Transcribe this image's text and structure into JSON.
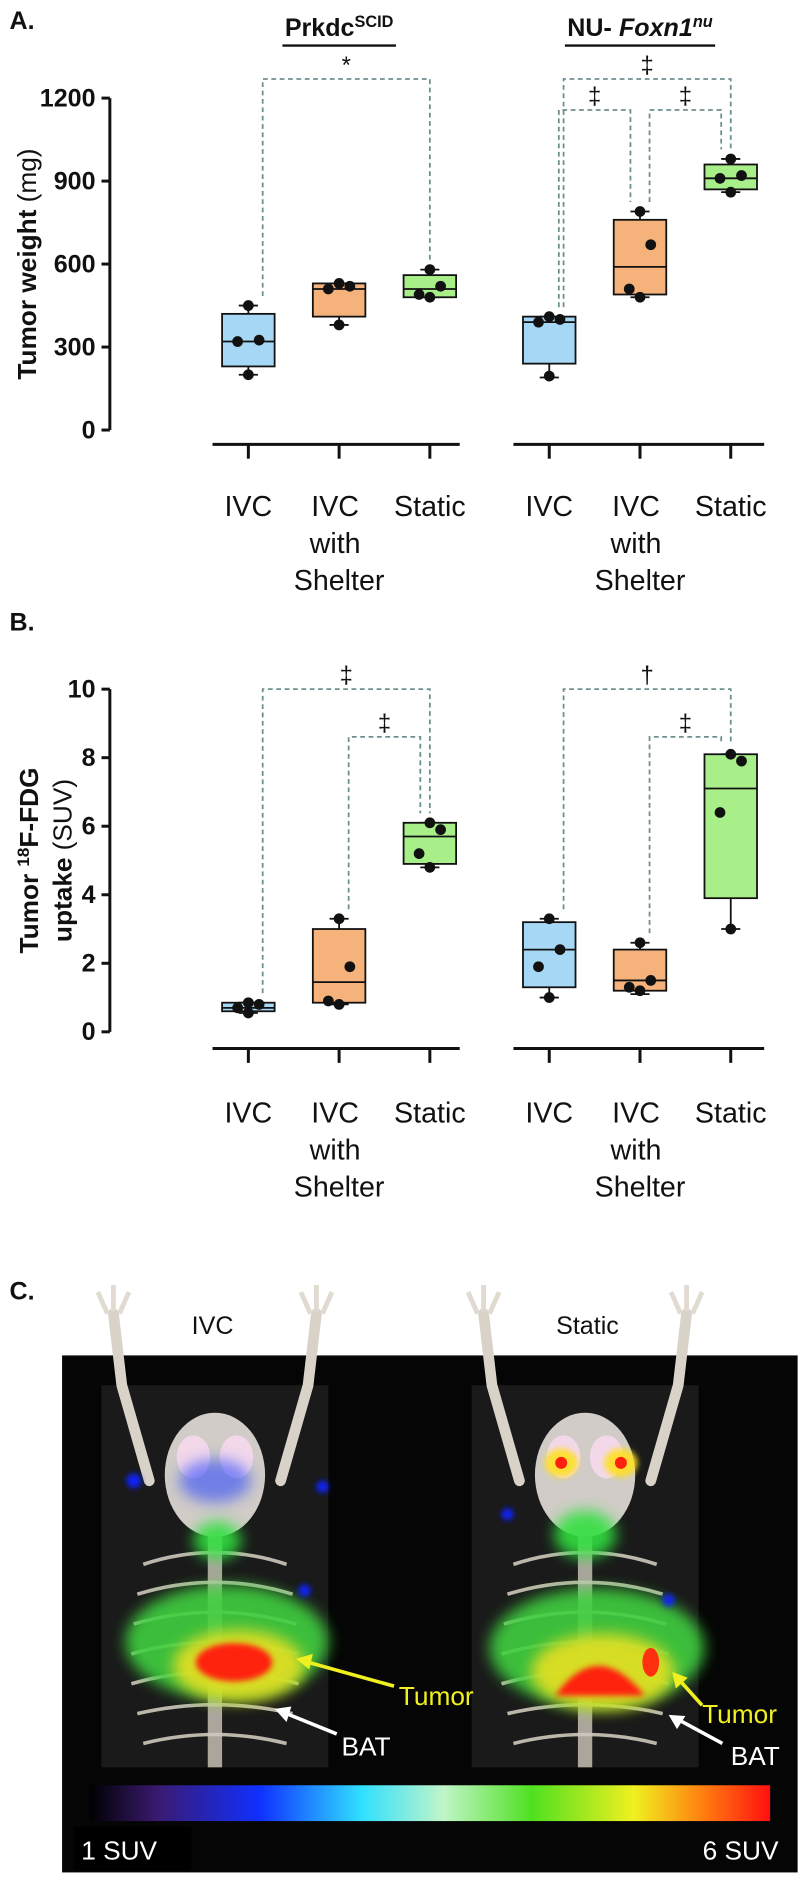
{
  "chart_data": [
    {
      "type": "box",
      "panel_label": "A.",
      "y_label": [
        [
          {
            "text": "Tumor weight",
            "bold": true
          },
          {
            "text": "(mg)"
          }
        ]
      ],
      "ylim": [
        0,
        1200
      ],
      "yticks": [
        0,
        300,
        600,
        900,
        1200
      ],
      "colors": [
        "#a6d8f5",
        "#f5b27a",
        "#a8ef8a"
      ],
      "groups": [
        {
          "title": [
            {
              "text": "Prkdc",
              "bold": true
            },
            {
              "text": "SCID",
              "bold": true,
              "sup": true
            }
          ],
          "categories": [
            "IVC",
            "IVC with Shelter",
            "Static"
          ],
          "boxes": [
            {
              "whisker": [
                200,
                450
              ],
              "box": [
                230,
                420
              ],
              "median": 320,
              "points": [
                450,
                325,
                320,
                200
              ]
            },
            {
              "whisker": [
                380,
                530
              ],
              "box": [
                410,
                530
              ],
              "median": 510,
              "points": [
                530,
                520,
                510,
                380
              ]
            },
            {
              "whisker": [
                480,
                580
              ],
              "box": [
                480,
                560
              ],
              "median": 510,
              "points": [
                580,
                520,
                490,
                480
              ]
            }
          ],
          "significance": [
            {
              "between": [
                0,
                2
              ],
              "label": "*"
            }
          ]
        },
        {
          "title": [
            {
              "text": "NU-",
              "bold": true
            },
            {
              "text": "Foxn1",
              "bold": true,
              "italic": true
            },
            {
              "text": "nu",
              "bold": true,
              "italic": true,
              "sup": true
            }
          ],
          "categories": [
            "IVC",
            "IVC with Shelter",
            "Static"
          ],
          "boxes": [
            {
              "whisker": [
                190,
                410
              ],
              "box": [
                240,
                410
              ],
              "median": 390,
              "points": [
                410,
                400,
                390,
                195
              ]
            },
            {
              "whisker": [
                480,
                790
              ],
              "box": [
                490,
                760
              ],
              "median": 590,
              "points": [
                790,
                670,
                510,
                480
              ]
            },
            {
              "whisker": [
                860,
                980
              ],
              "box": [
                870,
                960
              ],
              "median": 910,
              "points": [
                980,
                920,
                910,
                860
              ]
            }
          ],
          "significance": [
            {
              "between": [
                0,
                2
              ],
              "label": "‡"
            },
            {
              "between": [
                0,
                1
              ],
              "label": "‡"
            },
            {
              "between": [
                1,
                2
              ],
              "label": "‡"
            }
          ]
        }
      ]
    },
    {
      "type": "box",
      "panel_label": "B.",
      "y_label": [
        [
          {
            "text": "Tumor",
            "bold": true
          },
          {
            "text": "18",
            "bold": true,
            "sup": true
          },
          {
            "text": "F-FDG",
            "bold": true
          }
        ],
        [
          {
            "text": "uptake",
            "bold": true
          },
          {
            "text": "(SUV)"
          }
        ]
      ],
      "ylim": [
        0,
        10
      ],
      "yticks": [
        0,
        2,
        4,
        6,
        8,
        10
      ],
      "colors": [
        "#a6d8f5",
        "#f5b27a",
        "#a8ef8a"
      ],
      "groups": [
        {
          "categories": [
            "IVC",
            "IVC with Shelter",
            "Static"
          ],
          "boxes": [
            {
              "whisker": [
                0.55,
                0.85
              ],
              "box": [
                0.6,
                0.85
              ],
              "median": 0.7,
              "points": [
                0.85,
                0.8,
                0.7,
                0.55
              ]
            },
            {
              "whisker": [
                0.8,
                3.3
              ],
              "box": [
                0.85,
                3.0
              ],
              "median": 1.45,
              "points": [
                3.3,
                1.9,
                0.9,
                0.8
              ]
            },
            {
              "whisker": [
                4.8,
                6.1
              ],
              "box": [
                4.9,
                6.1
              ],
              "median": 5.7,
              "points": [
                6.1,
                5.9,
                5.2,
                4.8
              ]
            }
          ],
          "significance": [
            {
              "between": [
                0,
                2
              ],
              "label": "‡"
            },
            {
              "between": [
                1,
                2
              ],
              "label": "‡"
            }
          ]
        },
        {
          "categories": [
            "IVC",
            "IVC with Shelter",
            "Static"
          ],
          "boxes": [
            {
              "whisker": [
                1.0,
                3.3
              ],
              "box": [
                1.3,
                3.2
              ],
              "median": 2.4,
              "points": [
                3.3,
                2.4,
                1.9,
                1.0
              ]
            },
            {
              "whisker": [
                1.1,
                2.6
              ],
              "box": [
                1.2,
                2.4
              ],
              "median": 1.5,
              "points": [
                2.6,
                1.5,
                1.3,
                1.2
              ]
            },
            {
              "whisker": [
                3.0,
                8.1
              ],
              "box": [
                3.9,
                8.1
              ],
              "median": 7.1,
              "points": [
                8.1,
                7.9,
                6.4,
                3.0
              ]
            }
          ],
          "significance": [
            {
              "between": [
                0,
                2
              ],
              "label": "†"
            },
            {
              "between": [
                1,
                2
              ],
              "label": "‡"
            }
          ]
        }
      ]
    }
  ],
  "panel_c": {
    "label": "C.",
    "columns": [
      "IVC",
      "Static"
    ],
    "annotations": {
      "tumor": "Tumor",
      "bat": "BAT"
    },
    "colorbar": {
      "min": "1 SUV",
      "max": "6 SUV"
    }
  }
}
